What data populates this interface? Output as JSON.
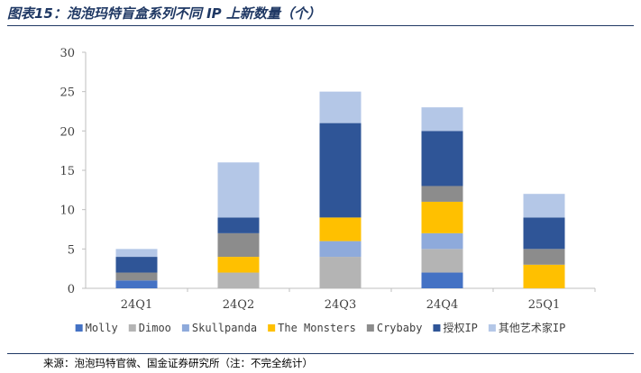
{
  "figure": {
    "title": "图表15：泡泡玛特盲盒系列不同 IP 上新数量（个）",
    "source": "来源：泡泡玛特官微、国金证券研究所（注：不完全统计）"
  },
  "chart_data": {
    "type": "bar",
    "stacked": true,
    "categories": [
      "24Q1",
      "24Q2",
      "24Q3",
      "24Q4",
      "25Q1"
    ],
    "ylim": [
      0,
      30
    ],
    "yticks": [
      0,
      5,
      10,
      15,
      20,
      25,
      30
    ],
    "legend_position": "bottom",
    "series": [
      {
        "name": "Molly",
        "color": "#4472c4",
        "values": [
          1,
          0,
          0,
          2,
          0
        ]
      },
      {
        "name": "Dimoo",
        "color": "#b4b4b4",
        "values": [
          0,
          2,
          4,
          3,
          0
        ]
      },
      {
        "name": "Skullpanda",
        "color": "#8eaadb",
        "values": [
          0,
          0,
          2,
          2,
          0
        ]
      },
      {
        "name": "The Monsters",
        "color": "#ffc000",
        "values": [
          0,
          2,
          3,
          4,
          3
        ]
      },
      {
        "name": "Crybaby",
        "color": "#8c8c8c",
        "values": [
          1,
          3,
          0,
          2,
          2
        ]
      },
      {
        "name": "授权IP",
        "color": "#2f5597",
        "values": [
          2,
          2,
          12,
          7,
          4
        ]
      },
      {
        "name": "其他艺术家IP",
        "color": "#b4c7e7",
        "values": [
          1,
          7,
          4,
          3,
          3
        ]
      }
    ]
  }
}
